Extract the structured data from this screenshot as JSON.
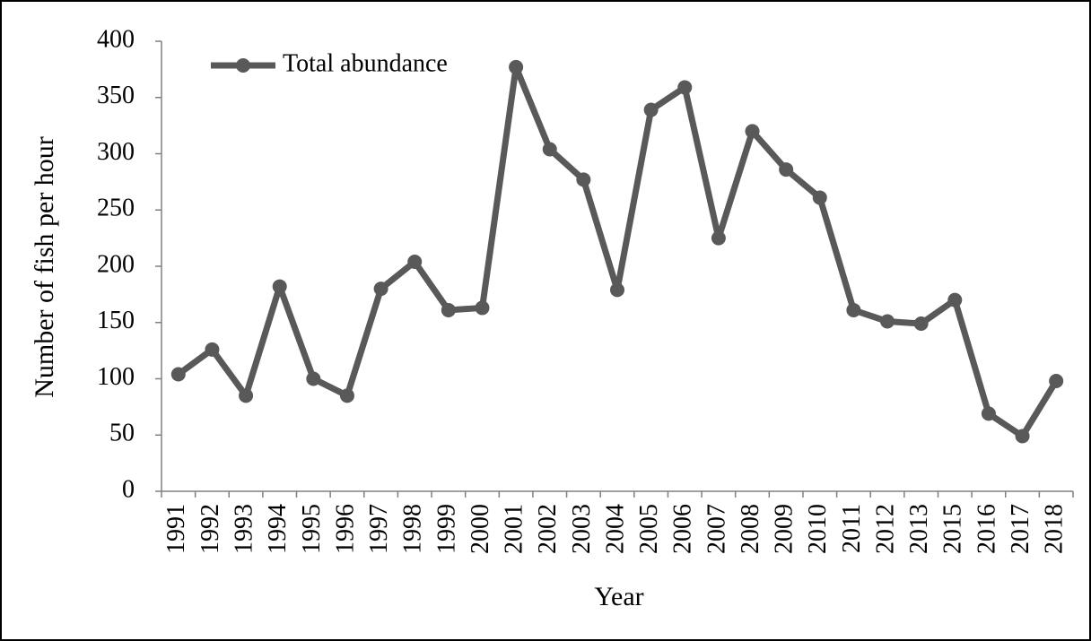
{
  "chart_data": {
    "type": "line",
    "x_label": "Year",
    "y_label": "Number of fish per hour",
    "categories": [
      "1991",
      "1992",
      "1993",
      "1994",
      "1995",
      "1996",
      "1997",
      "1998",
      "1999",
      "2000",
      "2001",
      "2002",
      "2003",
      "2004",
      "2005",
      "2006",
      "2007",
      "2008",
      "2009",
      "2010",
      "2011",
      "2012",
      "2013",
      "2015",
      "2016",
      "2017",
      "2018"
    ],
    "series": [
      {
        "name": "Total abundance",
        "color": "#595959",
        "values": [
          104,
          126,
          85,
          182,
          100,
          85,
          180,
          204,
          161,
          163,
          377,
          304,
          277,
          179,
          339,
          359,
          225,
          320,
          286,
          261,
          161,
          151,
          149,
          170,
          69,
          49,
          98
        ]
      }
    ],
    "ylim": [
      0,
      400
    ],
    "yticks": [
      0,
      50,
      100,
      150,
      200,
      250,
      300,
      350,
      400
    ],
    "legend": "top-left"
  }
}
